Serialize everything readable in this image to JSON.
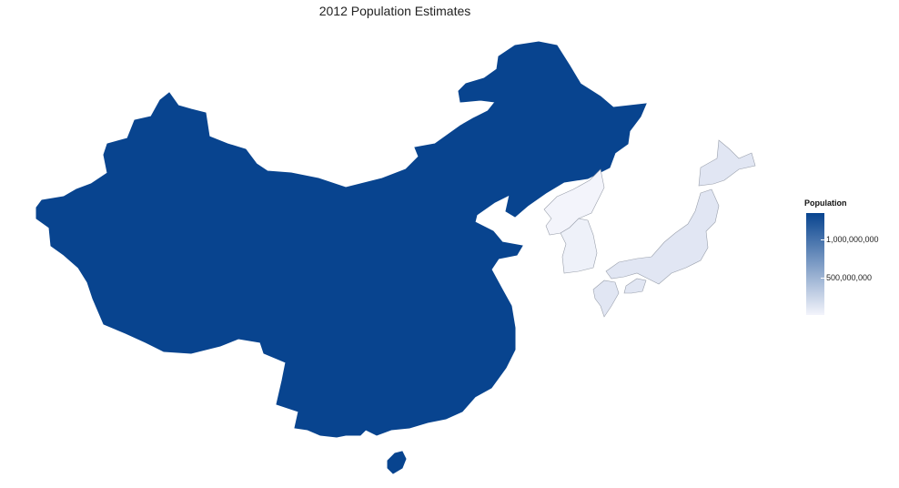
{
  "title": "2012 Population Estimates",
  "legend": {
    "title": "Population",
    "ticks": [
      {
        "label": "1,000,000,000",
        "value": 1000000000
      },
      {
        "label": "500,000,000",
        "value": 500000000
      }
    ],
    "min": 24000000,
    "max": 1350000000,
    "color_low": "#f3f4fb",
    "color_high": "#08448f"
  },
  "regions": [
    {
      "name": "China",
      "population": 1350000000
    },
    {
      "name": "North Korea",
      "population": 24000000
    },
    {
      "name": "South Korea",
      "population": 50000000
    },
    {
      "name": "Japan",
      "population": 127000000
    }
  ]
}
